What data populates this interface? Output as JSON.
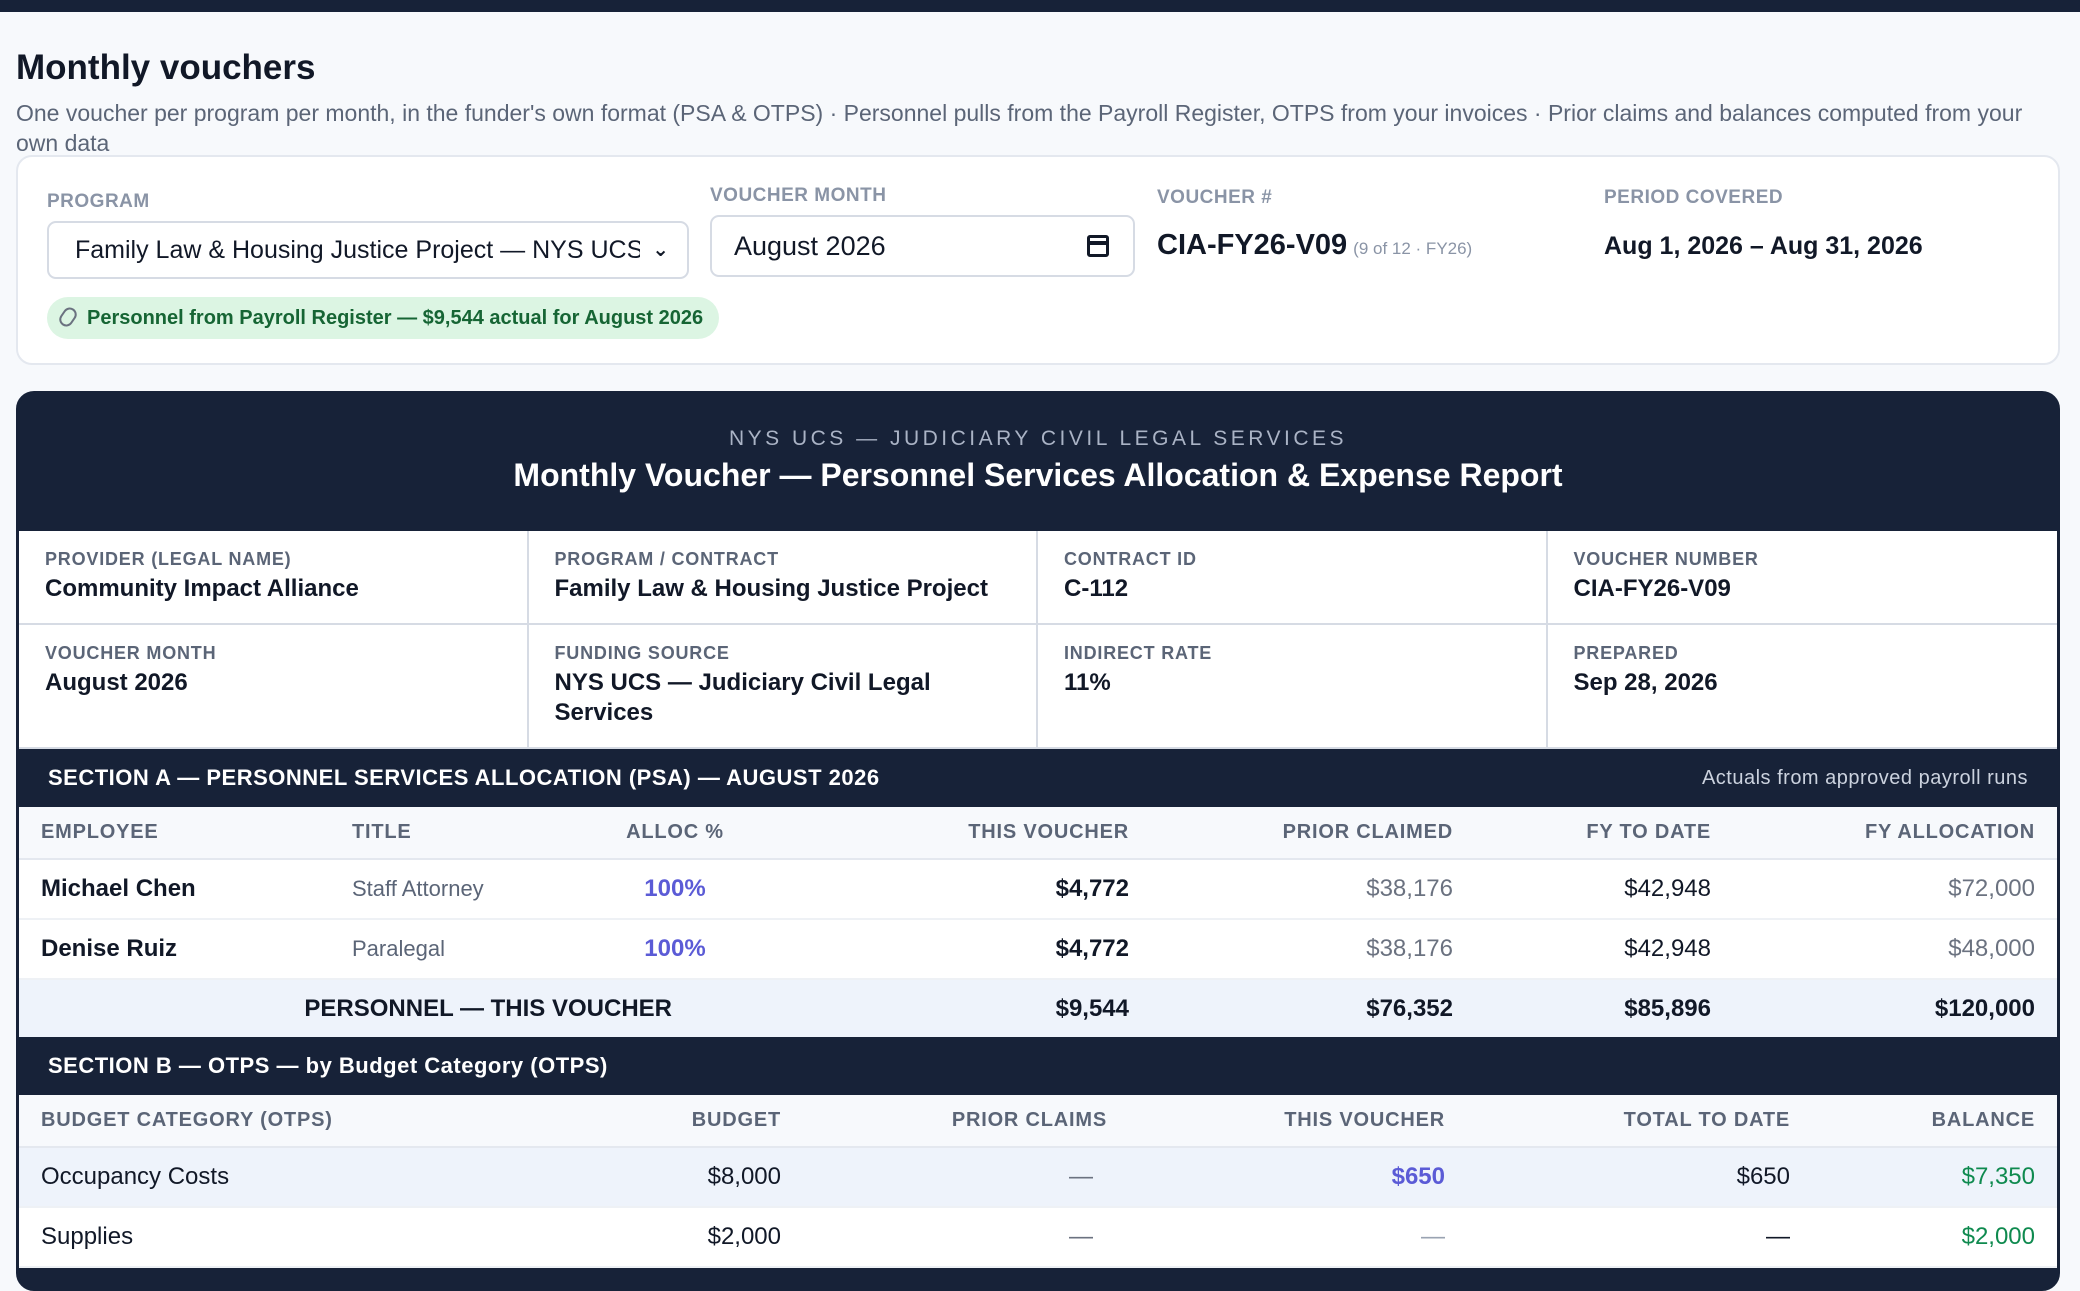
{
  "page": {
    "title": "Monthly vouchers",
    "subtitle": "One voucher per program per month, in the funder's own format (PSA & OTPS) · Personnel pulls from the Payroll Register, OTPS from your invoices · Prior claims and balances computed from your own data"
  },
  "controls": {
    "program_label": "PROGRAM",
    "program_value": "Family Law & Housing Justice Project — NYS UCS — Judiciary Civil Legal Services",
    "month_label": "VOUCHER MONTH",
    "month_value": "August 2026",
    "voucher_label": "VOUCHER #",
    "voucher_value": "CIA-FY26-V09",
    "voucher_sub": "(9 of 12 · FY26)",
    "period_label": "PERIOD COVERED",
    "period_value": "Aug 1, 2026 – Aug 31, 2026",
    "payroll_badge": "Personnel from Payroll Register — $9,544 actual for August 2026"
  },
  "report": {
    "funder": "NYS UCS — JUDICIARY CIVIL LEGAL SERVICES",
    "title": "Monthly Voucher — Personnel Services Allocation & Expense Report",
    "info": [
      {
        "label": "PROVIDER (LEGAL NAME)",
        "value": "Community Impact Alliance"
      },
      {
        "label": "PROGRAM / CONTRACT",
        "value": "Family Law & Housing Justice Project"
      },
      {
        "label": "CONTRACT ID",
        "value": "C-112"
      },
      {
        "label": "VOUCHER NUMBER",
        "value": "CIA-FY26-V09"
      },
      {
        "label": "VOUCHER MONTH",
        "value": "August 2026"
      },
      {
        "label": "FUNDING SOURCE",
        "value": "NYS UCS — Judiciary Civil Legal Services"
      },
      {
        "label": "INDIRECT RATE",
        "value": "11%"
      },
      {
        "label": "PREPARED",
        "value": "Sep 28, 2026"
      }
    ],
    "section_a": {
      "title": "SECTION A — PERSONNEL SERVICES ALLOCATION (PSA) — AUGUST 2026",
      "note": "Actuals from approved payroll runs",
      "columns": [
        "EMPLOYEE",
        "TITLE",
        "ALLOC %",
        "THIS VOUCHER",
        "PRIOR CLAIMED",
        "FY TO DATE",
        "FY ALLOCATION"
      ],
      "rows": [
        {
          "employee": "Michael Chen",
          "title": "Staff Attorney",
          "alloc": "100%",
          "this_voucher": "$4,772",
          "prior": "$38,176",
          "fytd": "$42,948",
          "fy_alloc": "$72,000"
        },
        {
          "employee": "Denise Ruiz",
          "title": "Paralegal",
          "alloc": "100%",
          "this_voucher": "$4,772",
          "prior": "$38,176",
          "fytd": "$42,948",
          "fy_alloc": "$48,000"
        }
      ],
      "total": {
        "label": "PERSONNEL — THIS VOUCHER",
        "this_voucher": "$9,544",
        "prior": "$76,352",
        "fytd": "$85,896",
        "fy_alloc": "$120,000"
      }
    },
    "section_b": {
      "title": "SECTION B — OTPS — by Budget Category (OTPS)",
      "columns": [
        "BUDGET CATEGORY (OTPS)",
        "BUDGET",
        "PRIOR CLAIMS",
        "THIS VOUCHER",
        "TOTAL TO DATE",
        "BALANCE"
      ],
      "rows": [
        {
          "category": "Occupancy Costs",
          "budget": "$8,000",
          "prior": "—",
          "this_voucher": "$650",
          "total": "$650",
          "balance": "$7,350"
        },
        {
          "category": "Supplies",
          "budget": "$2,000",
          "prior": "—",
          "this_voucher": "—",
          "total": "—",
          "balance": "$2,000"
        }
      ]
    }
  },
  "colors": {
    "navy": "#172238",
    "accent_purple": "#5b5bd6",
    "balance_green": "#0f8a4f",
    "badge_bg": "#dcf5e3"
  }
}
